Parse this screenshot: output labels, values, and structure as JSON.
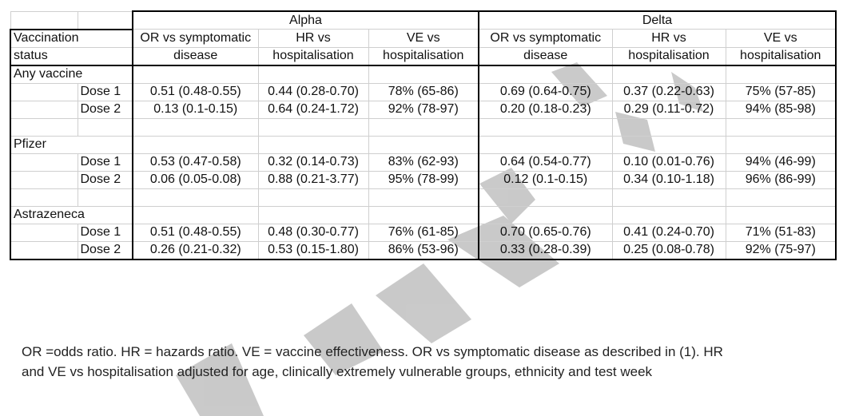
{
  "groups": {
    "alpha": "Alpha",
    "delta": "Delta"
  },
  "headers": {
    "status": [
      "Vaccination",
      "status"
    ],
    "or": [
      "OR vs symptomatic",
      "disease"
    ],
    "hr": [
      "HR vs",
      "hospitalisation"
    ],
    "ve": [
      "VE vs",
      "hospitalisation"
    ]
  },
  "sections": [
    {
      "name": "Any vaccine",
      "rows": [
        {
          "dose": "Dose 1",
          "alpha": [
            "0.51 (0.48-0.55)",
            "0.44 (0.28-0.70)",
            "78% (65-86)"
          ],
          "delta": [
            "0.69 (0.64-0.75)",
            "0.37 (0.22-0.63)",
            "75% (57-85)"
          ]
        },
        {
          "dose": "Dose 2",
          "alpha": [
            "0.13 (0.1-0.15)",
            "0.64 (0.24-1.72)",
            "92% (78-97)"
          ],
          "delta": [
            "0.20 (0.18-0.23)",
            "0.29 (0.11-0.72)",
            "94% (85-98)"
          ]
        }
      ]
    },
    {
      "name": "Pfizer",
      "rows": [
        {
          "dose": "Dose 1",
          "alpha": [
            "0.53 (0.47-0.58)",
            "0.32 (0.14-0.73)",
            "83% (62-93)"
          ],
          "delta": [
            "0.64 (0.54-0.77)",
            "0.10 (0.01-0.76)",
            "94% (46-99)"
          ]
        },
        {
          "dose": "Dose 2",
          "alpha": [
            "0.06 (0.05-0.08)",
            "0.88 (0.21-3.77)",
            "95% (78-99)"
          ],
          "delta": [
            "0.12 (0.1-0.15)",
            "0.34 (0.10-1.18)",
            "96% (86-99)"
          ]
        }
      ]
    },
    {
      "name": "Astrazeneca",
      "rows": [
        {
          "dose": "Dose 1",
          "alpha": [
            "0.51 (0.48-0.55)",
            "0.48 (0.30-0.77)",
            "76% (61-85)"
          ],
          "delta": [
            "0.70 (0.65-0.76)",
            "0.41 (0.24-0.70)",
            "71% (51-83)"
          ]
        },
        {
          "dose": "Dose 2",
          "alpha": [
            "0.26 (0.21-0.32)",
            "0.53 (0.15-1.80)",
            "86% (53-96)"
          ],
          "delta": [
            "0.33 (0.28-0.39)",
            "0.25 (0.08-0.78)",
            "92% (75-97)"
          ]
        }
      ]
    }
  ],
  "footnote": "OR =odds ratio. HR = hazards ratio. VE = vaccine effectiveness. OR vs symptomatic disease as described in (1). HR and VE vs hospitalisation adjusted for age, clinically extremely vulnerable groups, ethnicity and test week",
  "colors": {
    "watermark": "#c4c4c4",
    "grid": "#cfcfcf",
    "border": "#000000"
  }
}
